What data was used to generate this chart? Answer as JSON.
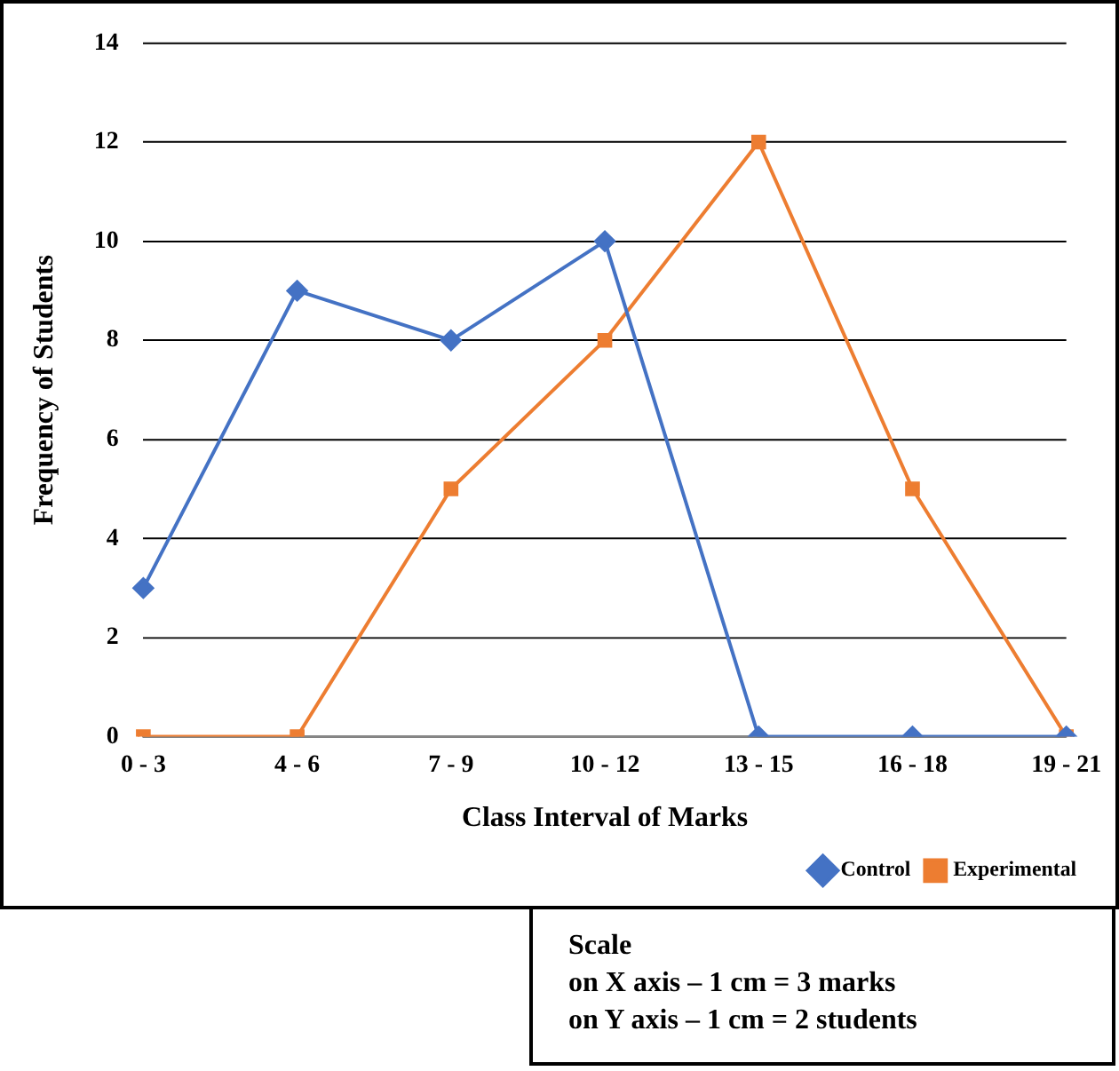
{
  "chart_data": {
    "type": "line",
    "xlabel": "Class Interval of Marks",
    "ylabel": "Frequency of Students",
    "categories": [
      "0 - 3",
      "4 - 6",
      "7 - 9",
      "10 - 12",
      "13 - 15",
      "16 - 18",
      "19 - 21"
    ],
    "series": [
      {
        "name": "Control",
        "color": "#4472c4",
        "marker": "diamond",
        "values": [
          3,
          9,
          8,
          10,
          0,
          0,
          0
        ]
      },
      {
        "name": "Experimental",
        "color": "#ed7d31",
        "marker": "square",
        "values": [
          0,
          0,
          5,
          8,
          12,
          5,
          0
        ]
      }
    ],
    "ylim": [
      0,
      14
    ],
    "yticks": [
      0,
      2,
      4,
      6,
      8,
      10,
      12,
      14
    ],
    "grid": "y",
    "legend": "bottom right",
    "line_style": "solid",
    "annotations": [
      "Scale",
      "on X axis – 1 cm = 3 marks",
      "on Y axis – 1 cm = 2 students"
    ]
  }
}
